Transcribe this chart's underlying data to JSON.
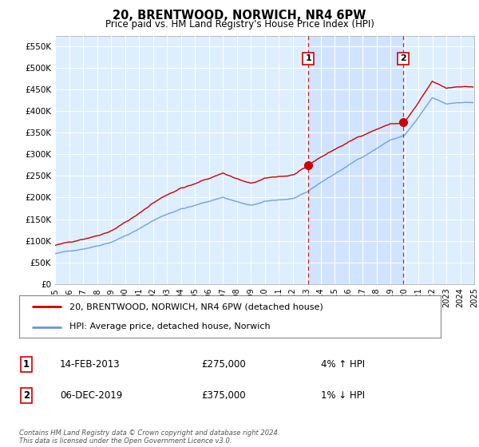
{
  "title": "20, BRENTWOOD, NORWICH, NR4 6PW",
  "subtitle": "Price paid vs. HM Land Registry's House Price Index (HPI)",
  "background_color": "#ffffff",
  "plot_bg_color": "#ddeeff",
  "grid_color": "#ffffff",
  "shade_color": "#cce0ff",
  "ylim": [
    0,
    575000
  ],
  "yticks": [
    0,
    50000,
    100000,
    150000,
    200000,
    250000,
    300000,
    350000,
    400000,
    450000,
    500000,
    550000
  ],
  "ytick_labels": [
    "£0",
    "£50K",
    "£100K",
    "£150K",
    "£200K",
    "£250K",
    "£300K",
    "£350K",
    "£400K",
    "£450K",
    "£500K",
    "£550K"
  ],
  "xmin_year": 1995,
  "xmax_year": 2025,
  "xtick_years": [
    1995,
    1996,
    1997,
    1998,
    1999,
    2000,
    2001,
    2002,
    2003,
    2004,
    2005,
    2006,
    2007,
    2008,
    2009,
    2010,
    2011,
    2012,
    2013,
    2014,
    2015,
    2016,
    2017,
    2018,
    2019,
    2020,
    2021,
    2022,
    2023,
    2024,
    2025
  ],
  "sale_date1": 2013.12,
  "sale_price1": 275000,
  "sale_date2": 2019.92,
  "sale_price2": 375000,
  "vline_color": "#cc0000",
  "sale_dot_color": "#cc0000",
  "hpi_line_color": "#6699dd",
  "house_line_color": "#cc0000",
  "legend_label_house": "20, BRENTWOOD, NORWICH, NR4 6PW (detached house)",
  "legend_label_hpi": "HPI: Average price, detached house, Norwich",
  "annotation1_date": "14-FEB-2013",
  "annotation1_price": "£275,000",
  "annotation1_pct": "4% ↑ HPI",
  "annotation2_date": "06-DEC-2019",
  "annotation2_price": "£375,000",
  "annotation2_pct": "1% ↓ HPI",
  "footer": "Contains HM Land Registry data © Crown copyright and database right 2024.\nThis data is licensed under the Open Government Licence v3.0."
}
